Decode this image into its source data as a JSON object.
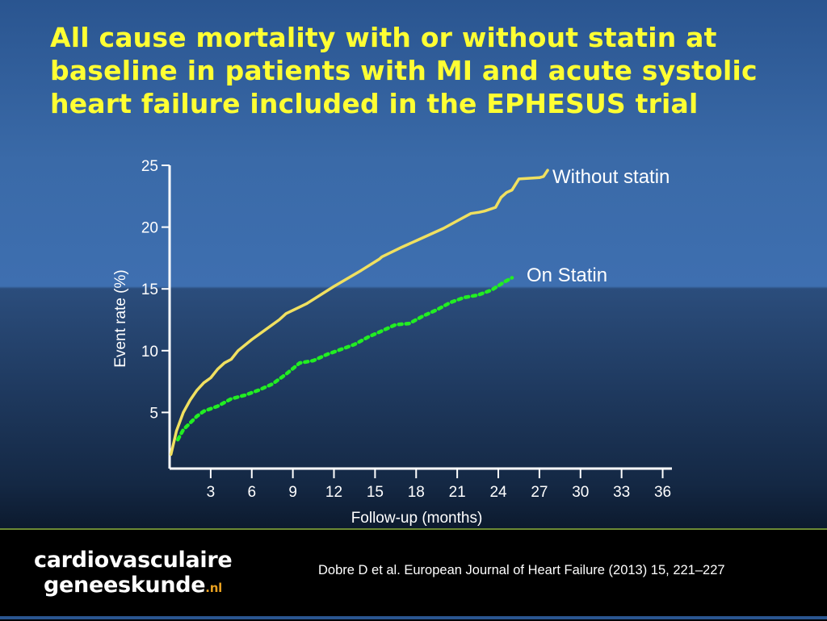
{
  "slide": {
    "title": "All cause mortality with or without statin at baseline in patients with MI and acute systolic heart failure included in the EPHESUS trial"
  },
  "footer": {
    "logo_line1": "cardiovasculaire",
    "logo_line2": "geneeskunde",
    "logo_suffix": ".nl",
    "citation": "Dobre D et al. European Journal of Heart Failure (2013) 15, 221–227"
  },
  "colors": {
    "title": "#ffff33",
    "without_statin": "#f0e060",
    "on_statin": "#22ee22"
  },
  "chart_data": {
    "type": "line",
    "xlabel": "Follow-up (months)",
    "ylabel": "Event rate (%)",
    "xticks": [
      3,
      6,
      9,
      12,
      15,
      18,
      21,
      24,
      27,
      30,
      33,
      36
    ],
    "yticks": [
      5,
      10,
      15,
      20,
      25
    ],
    "xlim": [
      0,
      36.5
    ],
    "ylim": [
      0,
      25
    ],
    "grid": false,
    "series": [
      {
        "name": "Without statin",
        "style": "solid",
        "x": [
          0.1,
          0.5,
          1,
          1.5,
          2,
          2.5,
          3,
          3.5,
          4,
          4.5,
          5,
          6,
          7,
          8,
          8.5,
          10,
          12,
          14,
          15.3,
          15.5,
          17,
          18,
          20,
          21,
          22,
          22.6,
          23,
          23.8,
          24.2,
          24.6,
          25,
          25.5,
          27,
          27.3,
          27.6
        ],
        "y": [
          1.6,
          3.5,
          5,
          6,
          6.8,
          7.4,
          7.8,
          8.5,
          9,
          9.3,
          10,
          10.9,
          11.7,
          12.5,
          13,
          13.8,
          15.2,
          16.5,
          17.4,
          17.6,
          18.4,
          18.9,
          19.9,
          20.5,
          21.1,
          21.2,
          21.3,
          21.6,
          22.4,
          22.8,
          23,
          23.9,
          24,
          24.1,
          24.6
        ]
      },
      {
        "name": "On Statin",
        "style": "dotted",
        "x": [
          0.6,
          1,
          2,
          2.5,
          3.5,
          4.5,
          5.5,
          6.5,
          7.5,
          8.5,
          9.5,
          10.5,
          11.5,
          12.5,
          13.5,
          14.5,
          15.5,
          16.5,
          17.5,
          18.5,
          19.5,
          20.5,
          21.5,
          22.5,
          23.5,
          24.5,
          25
        ],
        "y": [
          2.8,
          3.6,
          4.7,
          5.1,
          5.5,
          6.1,
          6.4,
          6.8,
          7.3,
          8.1,
          9,
          9.2,
          9.7,
          10.1,
          10.5,
          11.1,
          11.6,
          12.1,
          12.2,
          12.8,
          13.3,
          13.9,
          14.3,
          14.5,
          14.9,
          15.6,
          15.9
        ]
      }
    ]
  }
}
